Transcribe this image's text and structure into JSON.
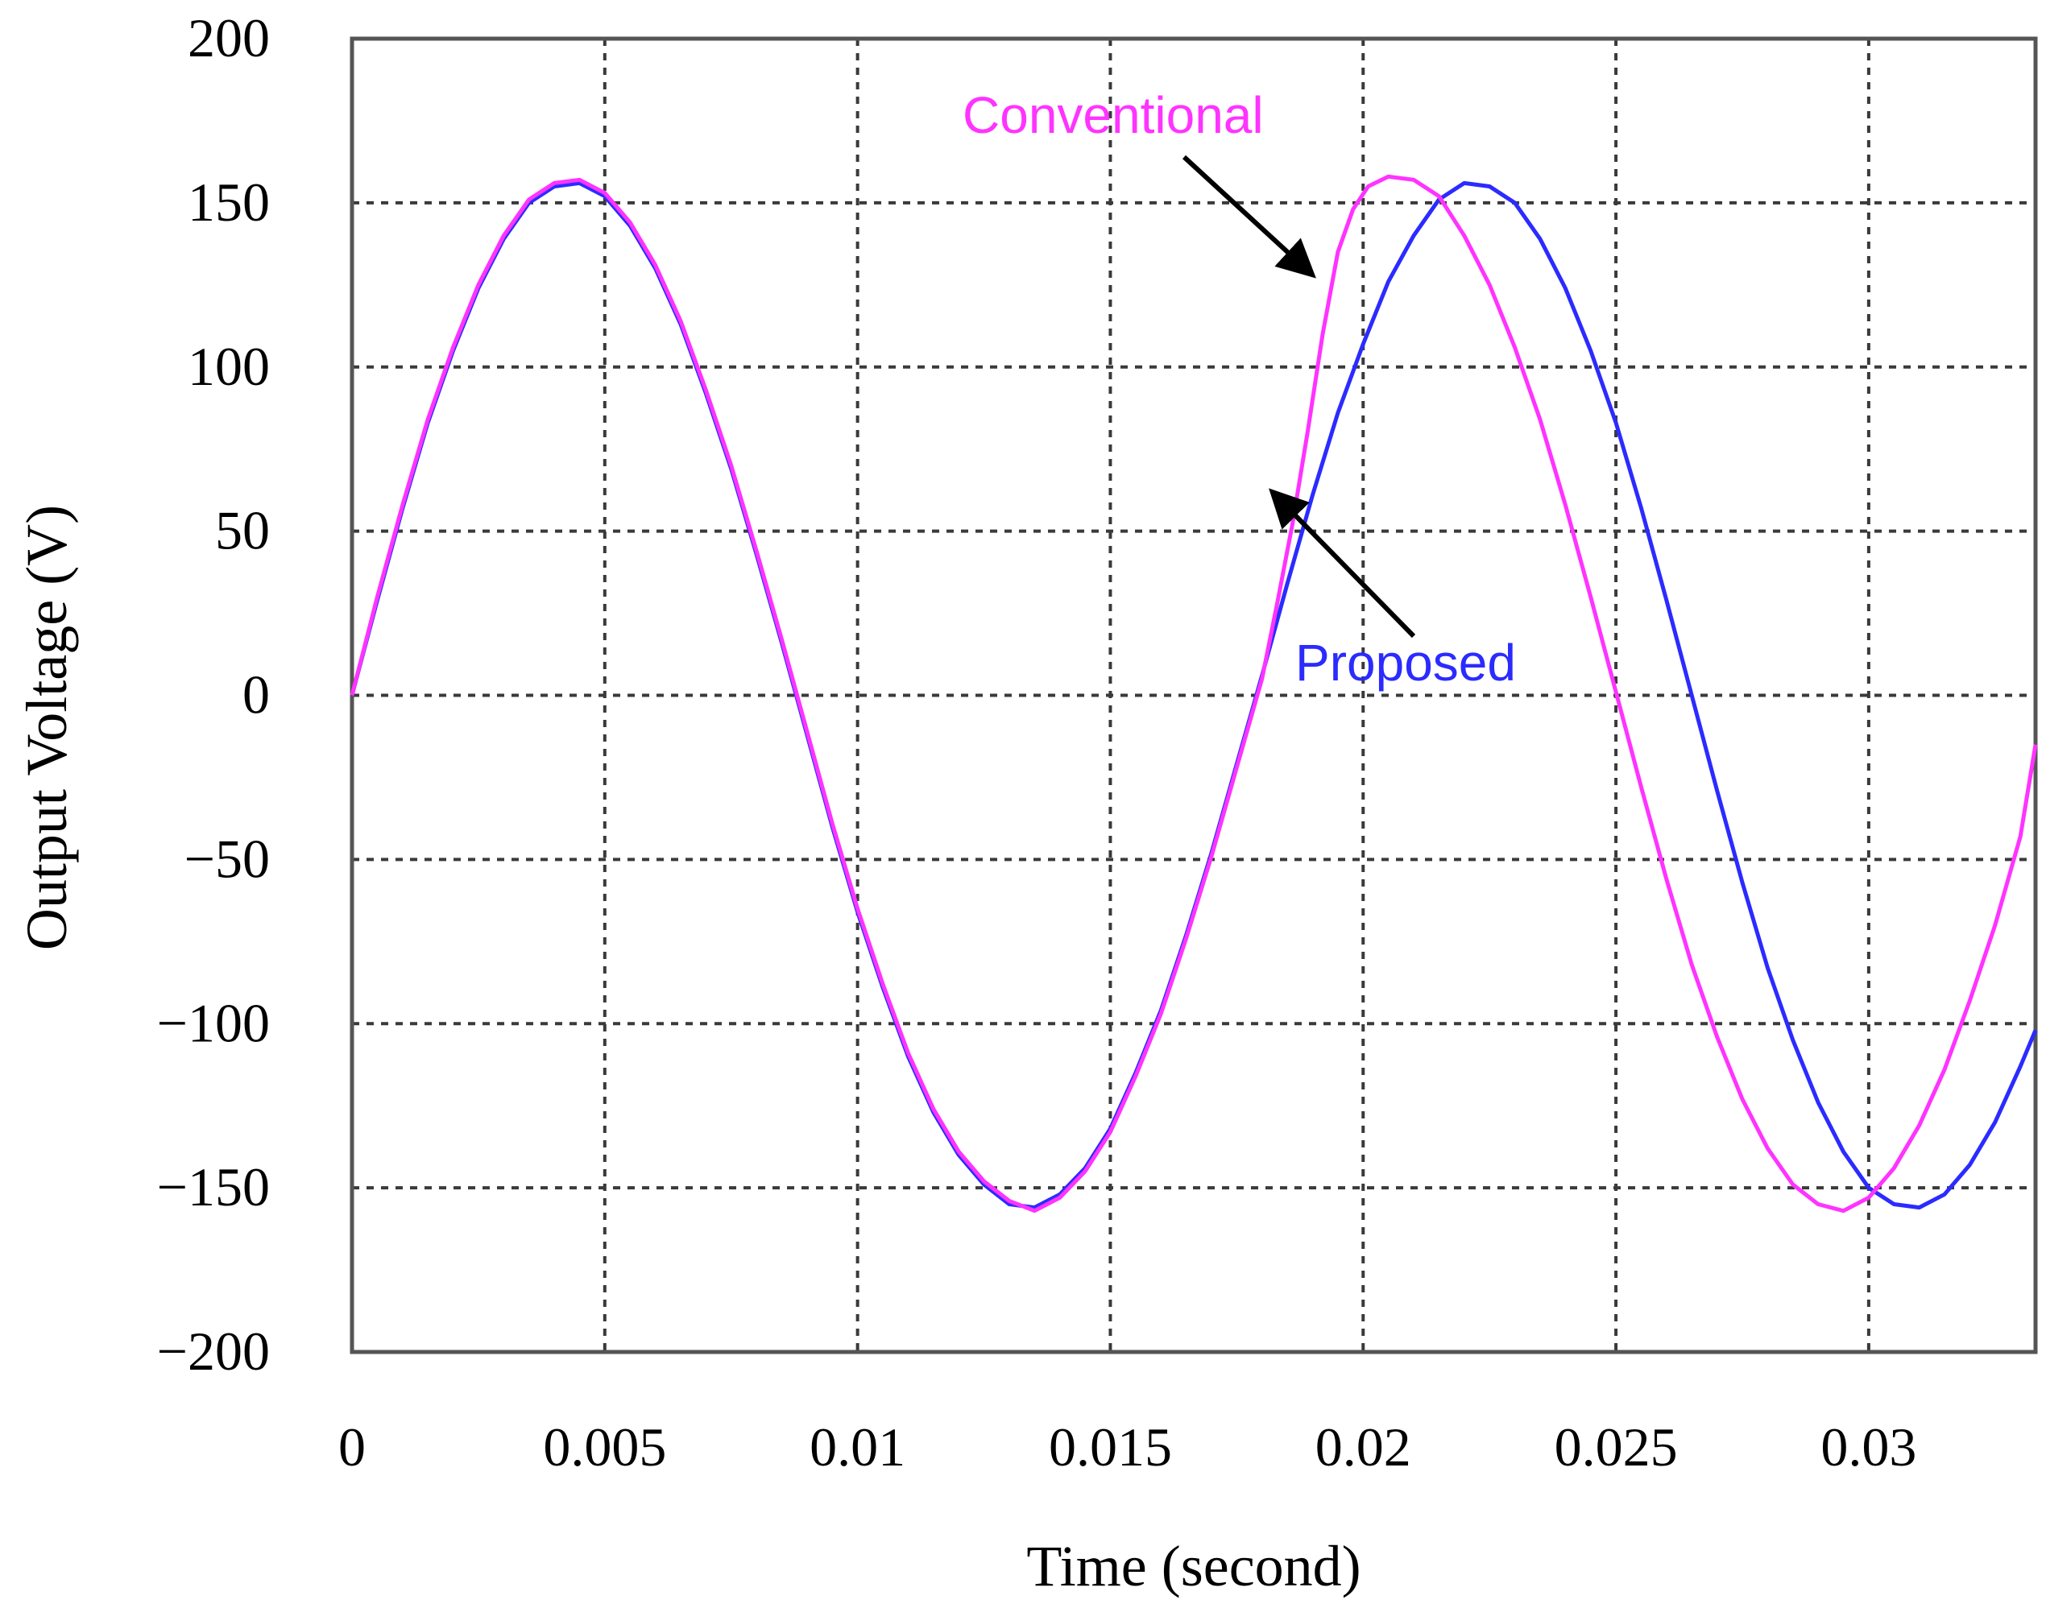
{
  "chart_data": {
    "type": "line",
    "xlabel": "Time (second)",
    "ylabel": "Output Voltage (V)",
    "xlim": [
      0,
      0.0333
    ],
    "ylim": [
      -200,
      200
    ],
    "xticks": [
      0,
      0.005,
      0.01,
      0.015,
      0.02,
      0.025,
      0.03
    ],
    "xtick_labels": [
      "0",
      "0.005",
      "0.01",
      "0.015",
      "0.02",
      "0.025",
      "0.03"
    ],
    "yticks": [
      200,
      150,
      100,
      50,
      0,
      -50,
      -100,
      -150,
      -200
    ],
    "ytick_labels": [
      "200",
      "150",
      "100",
      "50",
      "0",
      "−50",
      "−100",
      "−150",
      "−200"
    ],
    "grid": true,
    "series": [
      {
        "name": "Proposed",
        "color": "#2b2bff",
        "x": [
          0,
          0.0005,
          0.001,
          0.0015,
          0.002,
          0.0025,
          0.003,
          0.0035,
          0.004,
          0.0045,
          0.005,
          0.0055,
          0.006,
          0.0065,
          0.007,
          0.0075,
          0.008,
          0.0085,
          0.009,
          0.0095,
          0.01,
          0.0105,
          0.011,
          0.0115,
          0.012,
          0.0125,
          0.013,
          0.0135,
          0.014,
          0.0145,
          0.015,
          0.0155,
          0.016,
          0.0165,
          0.017,
          0.0175,
          0.018,
          0.0185,
          0.019,
          0.0195,
          0.02,
          0.0205,
          0.021,
          0.0215,
          0.022,
          0.0225,
          0.023,
          0.0235,
          0.024,
          0.0245,
          0.025,
          0.0255,
          0.026,
          0.0265,
          0.027,
          0.0275,
          0.028,
          0.0285,
          0.029,
          0.0295,
          0.03,
          0.0305,
          0.031,
          0.0315,
          0.032,
          0.0325,
          0.033,
          0.0333
        ],
        "y": [
          0,
          29,
          57,
          83,
          105,
          124,
          139,
          150,
          155,
          156,
          152,
          143,
          130,
          113,
          92,
          69,
          43,
          16,
          -12,
          -40,
          -66,
          -89,
          -110,
          -127,
          -140,
          -149,
          -155,
          -156,
          -152,
          -144,
          -132,
          -115,
          -96,
          -73,
          -48,
          -21,
          6,
          34,
          61,
          86,
          107,
          126,
          140,
          151,
          156,
          155,
          150,
          139,
          124,
          105,
          83,
          57,
          29,
          0,
          -29,
          -57,
          -83,
          -105,
          -124,
          -139,
          -150,
          -155,
          -156,
          -152,
          -143,
          -130,
          -113,
          -102
        ]
      },
      {
        "name": "Conventional",
        "color": "#ff33ff",
        "x": [
          0,
          0.0005,
          0.001,
          0.0015,
          0.002,
          0.0025,
          0.003,
          0.0035,
          0.004,
          0.0045,
          0.005,
          0.0055,
          0.006,
          0.0065,
          0.007,
          0.0075,
          0.008,
          0.0085,
          0.009,
          0.0095,
          0.01,
          0.0105,
          0.011,
          0.0115,
          0.012,
          0.0125,
          0.013,
          0.0135,
          0.014,
          0.0145,
          0.015,
          0.0155,
          0.016,
          0.0165,
          0.017,
          0.0175,
          0.018,
          0.0183,
          0.0186,
          0.0189,
          0.0192,
          0.0195,
          0.0198,
          0.0201,
          0.0205,
          0.021,
          0.0215,
          0.022,
          0.0225,
          0.023,
          0.0235,
          0.024,
          0.0245,
          0.025,
          0.0255,
          0.026,
          0.0265,
          0.027,
          0.0275,
          0.028,
          0.0285,
          0.029,
          0.0295,
          0.03,
          0.0305,
          0.031,
          0.0315,
          0.032,
          0.0325,
          0.033,
          0.0333
        ],
        "y": [
          0,
          30,
          58,
          84,
          106,
          125,
          140,
          151,
          156,
          157,
          153,
          144,
          131,
          114,
          93,
          70,
          44,
          17,
          -11,
          -39,
          -65,
          -88,
          -109,
          -126,
          -139,
          -148,
          -154,
          -157,
          -153,
          -145,
          -133,
          -116,
          -97,
          -74,
          -49,
          -22,
          5,
          28,
          52,
          80,
          110,
          135,
          148,
          155,
          158,
          157,
          152,
          140,
          125,
          106,
          84,
          58,
          30,
          1,
          -28,
          -56,
          -82,
          -104,
          -123,
          -138,
          -149,
          -155,
          -157,
          -153,
          -144,
          -131,
          -114,
          -93,
          -70,
          -43,
          -15
        ]
      }
    ],
    "annotations": [
      {
        "text": "Conventional",
        "color": "#ff33ff",
        "target": {
          "x": 0.019,
          "y": 128
        }
      },
      {
        "text": "Proposed",
        "color": "#2b2bff",
        "target": {
          "x": 0.0182,
          "y": 62
        }
      }
    ]
  }
}
